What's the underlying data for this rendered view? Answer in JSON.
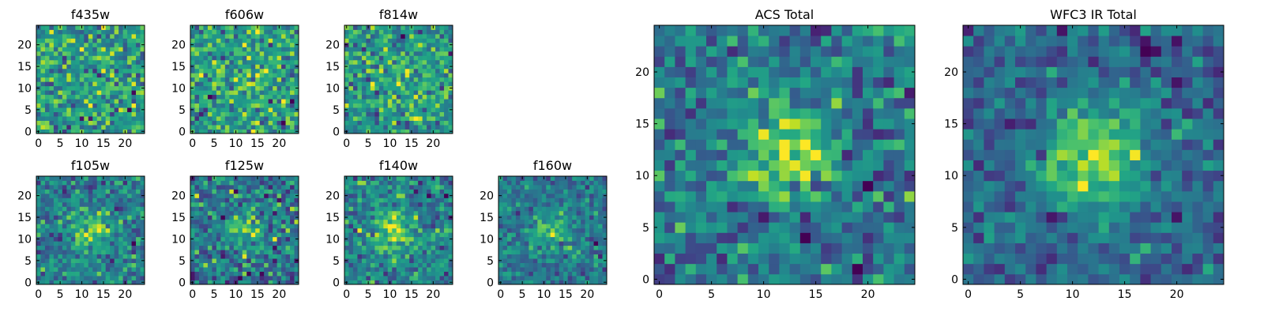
{
  "chart_data": [
    {
      "type": "heatmap",
      "title": "f435w",
      "xlim": [
        0,
        24
      ],
      "ylim": [
        0,
        24
      ],
      "xticks": [
        "0",
        "5",
        "10",
        "15",
        "20"
      ],
      "yticks": [
        "0",
        "5",
        "10",
        "15",
        "20"
      ],
      "colormap": "viridis",
      "center": [
        12,
        11
      ],
      "peak": 0.0,
      "noise": 1.0
    },
    {
      "type": "heatmap",
      "title": "f606w",
      "xlim": [
        0,
        24
      ],
      "ylim": [
        0,
        24
      ],
      "xticks": [
        "0",
        "5",
        "10",
        "15",
        "20"
      ],
      "yticks": [
        "0",
        "5",
        "10",
        "15",
        "20"
      ],
      "colormap": "viridis",
      "center": [
        12,
        12
      ],
      "peak": 0.6,
      "noise": 0.95
    },
    {
      "type": "heatmap",
      "title": "f814w",
      "xlim": [
        0,
        24
      ],
      "ylim": [
        0,
        24
      ],
      "xticks": [
        "0",
        "5",
        "10",
        "15",
        "20"
      ],
      "yticks": [
        "0",
        "5",
        "10",
        "15",
        "20"
      ],
      "colormap": "viridis",
      "center": [
        12,
        12
      ],
      "peak": 0.75,
      "noise": 0.95
    },
    {
      "type": "heatmap",
      "title": "f105w",
      "xlim": [
        0,
        24
      ],
      "ylim": [
        0,
        24
      ],
      "xticks": [
        "0",
        "5",
        "10",
        "15",
        "20"
      ],
      "yticks": [
        "0",
        "5",
        "10",
        "15",
        "20"
      ],
      "colormap": "viridis",
      "center": [
        12,
        12
      ],
      "peak": 1.5,
      "noise": 0.6
    },
    {
      "type": "heatmap",
      "title": "f125w",
      "xlim": [
        0,
        24
      ],
      "ylim": [
        0,
        24
      ],
      "xticks": [
        "0",
        "5",
        "10",
        "15",
        "20"
      ],
      "yticks": [
        "0",
        "5",
        "10",
        "15",
        "20"
      ],
      "colormap": "viridis",
      "center": [
        12,
        12
      ],
      "peak": 1.2,
      "noise": 0.65
    },
    {
      "type": "heatmap",
      "title": "f140w",
      "xlim": [
        0,
        24
      ],
      "ylim": [
        0,
        24
      ],
      "xticks": [
        "0",
        "5",
        "10",
        "15",
        "20"
      ],
      "yticks": [
        "0",
        "5",
        "10",
        "15",
        "20"
      ],
      "colormap": "viridis",
      "center": [
        11,
        12
      ],
      "peak": 1.6,
      "noise": 0.6
    },
    {
      "type": "heatmap",
      "title": "f160w",
      "xlim": [
        0,
        24
      ],
      "ylim": [
        0,
        24
      ],
      "xticks": [
        "0",
        "5",
        "10",
        "15",
        "20"
      ],
      "yticks": [
        "0",
        "5",
        "10",
        "15",
        "20"
      ],
      "colormap": "viridis",
      "center": [
        12,
        12
      ],
      "peak": 1.5,
      "noise": 0.65
    },
    {
      "type": "heatmap",
      "title": "ACS Total",
      "xlim": [
        0,
        24
      ],
      "ylim": [
        0,
        24
      ],
      "xticks": [
        "0",
        "5",
        "10",
        "15",
        "20"
      ],
      "yticks": [
        "0",
        "5",
        "10",
        "15",
        "20"
      ],
      "colormap": "viridis",
      "center": [
        12,
        12
      ],
      "peak": 1.6,
      "noise": 0.55
    },
    {
      "type": "heatmap",
      "title": "WFC3 IR Total",
      "xlim": [
        0,
        24
      ],
      "ylim": [
        0,
        24
      ],
      "xticks": [
        "0",
        "5",
        "10",
        "15",
        "20"
      ],
      "yticks": [
        "0",
        "5",
        "10",
        "15",
        "20"
      ],
      "colormap": "viridis",
      "center": [
        12,
        12
      ],
      "peak": 2.2,
      "noise": 0.45
    }
  ]
}
